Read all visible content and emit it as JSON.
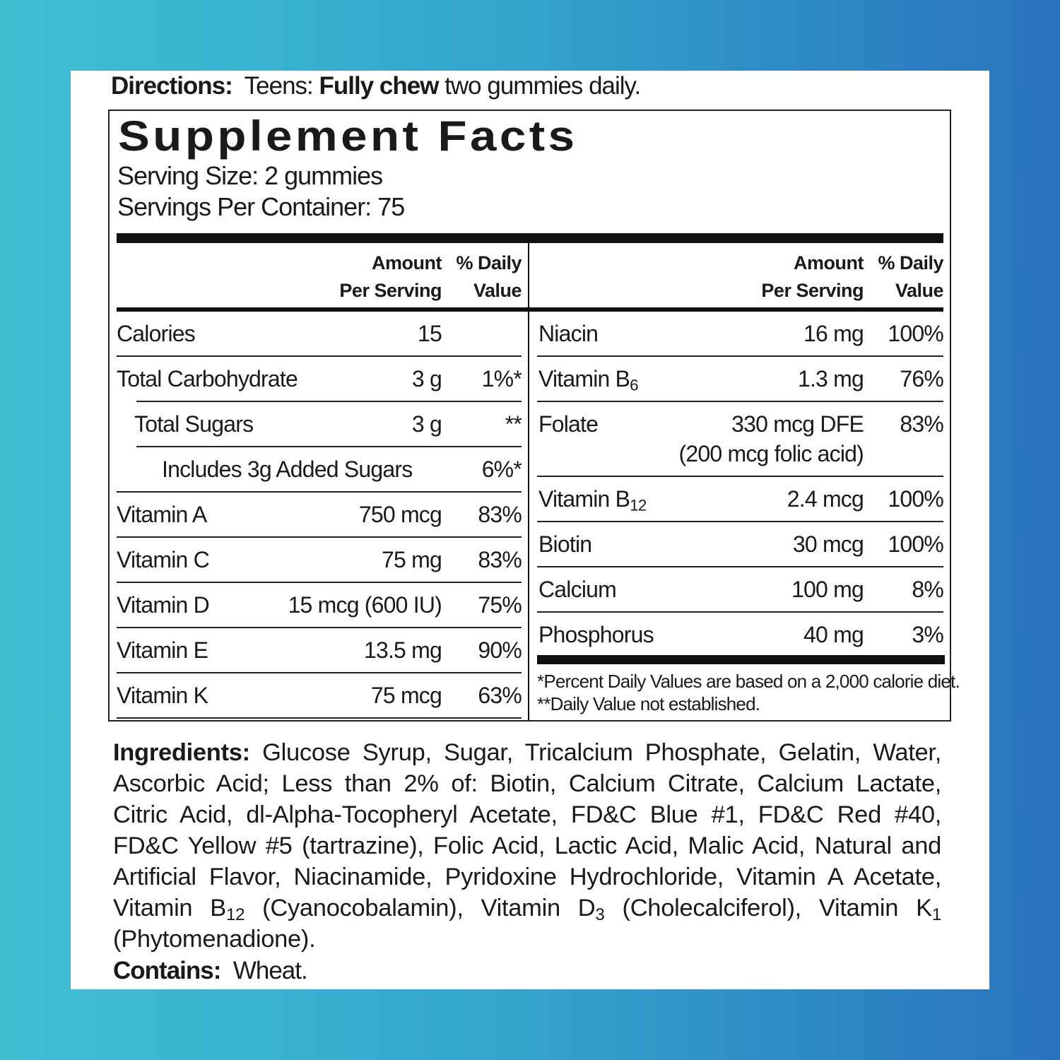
{
  "directions": {
    "label": "Directions:",
    "audience": "Teens:",
    "emphasis": "Fully chew",
    "text": "two gummies daily."
  },
  "facts": {
    "title": "Supplement Facts",
    "serving_size": "Serving Size:  2 gummies",
    "servings_per_container": "Servings Per Container: 75",
    "amount_header": [
      "Amount",
      "Per Serving"
    ],
    "dv_header": [
      "% Daily",
      "Value"
    ],
    "left_rows": [
      {
        "name": "Calories",
        "amount": "15",
        "level": 0
      },
      {
        "name": "Total Carbohydrate",
        "amount": "3 g",
        "dv": "1%*",
        "level": 0
      },
      {
        "name": "Total Sugars",
        "amount": "3 g",
        "dv": "**",
        "level": 1
      },
      {
        "name": "Includes 3g Added Sugars",
        "dv": "6%*",
        "level": 2
      },
      {
        "name": "Vitamin A",
        "amount": "750 mcg",
        "dv": "83%",
        "level": 0
      },
      {
        "name": "Vitamin C",
        "amount": "75 mg",
        "dv": "83%",
        "level": 0
      },
      {
        "name": "Vitamin D",
        "amount": "15 mcg (600 IU)",
        "dv": "75%",
        "level": 0
      },
      {
        "name": "Vitamin E",
        "amount": "13.5 mg",
        "dv": "90%",
        "level": 0
      },
      {
        "name": "Vitamin K",
        "amount": "75 mcg",
        "dv": "63%",
        "level": 0
      }
    ],
    "right_rows": [
      {
        "name": "Niacin",
        "amount": "16 mg",
        "dv": "100%"
      },
      {
        "name": "Vitamin B",
        "name_sub": "6",
        "amount": "1.3 mg",
        "dv": "76%"
      },
      {
        "name": "Folate",
        "amount": "330 mcg DFE",
        "amount_note": "(200 mcg folic acid)",
        "dv": "83%"
      },
      {
        "name": "Vitamin B",
        "name_sub": "12",
        "amount": "2.4 mcg",
        "dv": "100%"
      },
      {
        "name": "Biotin",
        "amount": "30 mcg",
        "dv": "100%"
      },
      {
        "name": "Calcium",
        "amount": "100 mg",
        "dv": "8%"
      },
      {
        "name": "Phosphorus",
        "amount": "40 mg",
        "dv": "3%"
      }
    ],
    "footnotes": [
      "*Percent Daily Values are based on a 2,000 calorie diet.",
      "**Daily Value not established."
    ]
  },
  "ingredients": {
    "label": "Ingredients:",
    "segments": [
      {
        "text": " Glucose Syrup, Sugar, Tricalcium Phosphate, Gelatin, Water, Ascorbic Acid; Less than 2% of: Biotin, Calcium Citrate, Calcium Lactate, Citric Acid, dl-Alpha-Tocopheryl Acetate, FD&C Blue #1, FD&C Red #40, FD&C Yellow #5 (tartrazine), Folic Acid, Lactic Acid, Malic Acid, Natural and Artificial Flavor, Niacinamide, Pyridoxine Hydrochloride, Vitamin A Acetate, Vitamin B"
      },
      {
        "sub": "12"
      },
      {
        "text": " (Cyanocobalamin), Vitamin D"
      },
      {
        "sub": "3"
      },
      {
        "text": " (Cholecalciferol), Vitamin K"
      },
      {
        "sub": "1"
      },
      {
        "text": " (Phytomenadione)."
      }
    ]
  },
  "contains": {
    "label": "Contains:",
    "text": "Wheat."
  }
}
